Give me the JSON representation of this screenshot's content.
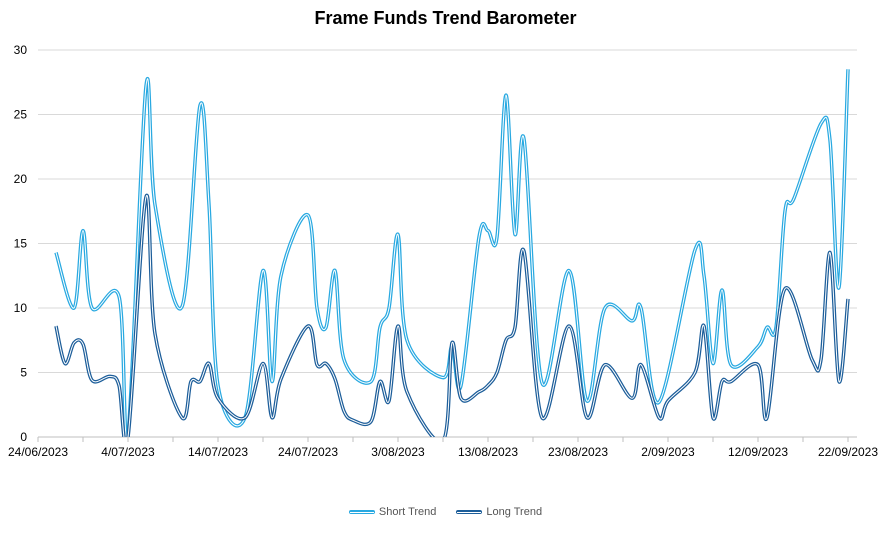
{
  "chart_data": {
    "type": "line",
    "title": "Frame Funds Trend Barometer",
    "xlabel": "",
    "ylabel": "",
    "xlim": [
      "24/06/2023",
      "23/09/2023"
    ],
    "ylim": [
      0,
      30
    ],
    "y_ticks": [
      0,
      5,
      10,
      15,
      20,
      25,
      30
    ],
    "x_ticks": [
      "24/06/2023",
      "4/07/2023",
      "14/07/2023",
      "24/07/2023",
      "3/08/2023",
      "13/08/2023",
      "23/08/2023",
      "2/09/2023",
      "12/09/2023",
      "22/09/2023"
    ],
    "grid": "horizontal",
    "legend": "bottom",
    "series": [
      {
        "name": "Short Trend",
        "color": "#29A9E1",
        "points": [
          [
            "26/06/2023",
            14.3
          ],
          [
            "28/06/2023",
            10.0
          ],
          [
            "29/06/2023",
            16.0
          ],
          [
            "30/06/2023",
            10.0
          ],
          [
            "3/07/2023",
            10.9
          ],
          [
            "4/07/2023",
            0.2
          ],
          [
            "6/07/2023",
            27.2
          ],
          [
            "7/07/2023",
            18.0
          ],
          [
            "10/07/2023",
            10.1
          ],
          [
            "12/07/2023",
            25.7
          ],
          [
            "13/07/2023",
            18.0
          ],
          [
            "14/07/2023",
            4.0
          ],
          [
            "17/07/2023",
            1.5
          ],
          [
            "19/07/2023",
            12.9
          ],
          [
            "20/07/2023",
            4.3
          ],
          [
            "21/07/2023",
            12.5
          ],
          [
            "24/07/2023",
            17.2
          ],
          [
            "25/07/2023",
            10.0
          ],
          [
            "26/07/2023",
            8.5
          ],
          [
            "27/07/2023",
            12.9
          ],
          [
            "28/07/2023",
            6.0
          ],
          [
            "31/07/2023",
            4.3
          ],
          [
            "1/08/2023",
            8.5
          ],
          [
            "2/08/2023",
            10.0
          ],
          [
            "3/08/2023",
            15.7
          ],
          [
            "4/08/2023",
            7.5
          ],
          [
            "8/08/2023",
            4.6
          ],
          [
            "9/08/2023",
            7.0
          ],
          [
            "10/08/2023",
            4.0
          ],
          [
            "12/08/2023",
            15.5
          ],
          [
            "13/08/2023",
            16.0
          ],
          [
            "14/08/2023",
            15.5
          ],
          [
            "15/08/2023",
            26.5
          ],
          [
            "16/08/2023",
            15.7
          ],
          [
            "17/08/2023",
            23.1
          ],
          [
            "19/08/2023",
            4.2
          ],
          [
            "22/08/2023",
            12.9
          ],
          [
            "24/08/2023",
            2.8
          ],
          [
            "26/08/2023",
            10.0
          ],
          [
            "29/08/2023",
            9.0
          ],
          [
            "30/08/2023",
            10.0
          ],
          [
            "1/09/2023",
            2.7
          ],
          [
            "5/09/2023",
            14.5
          ],
          [
            "6/09/2023",
            12.5
          ],
          [
            "7/09/2023",
            5.7
          ],
          [
            "8/09/2023",
            11.4
          ],
          [
            "9/09/2023",
            5.6
          ],
          [
            "12/09/2023",
            7.0
          ],
          [
            "13/09/2023",
            8.5
          ],
          [
            "14/09/2023",
            8.5
          ],
          [
            "15/09/2023",
            17.5
          ],
          [
            "16/09/2023",
            18.5
          ],
          [
            "19/09/2023",
            24.3
          ],
          [
            "20/09/2023",
            23.0
          ],
          [
            "21/09/2023",
            11.6
          ],
          [
            "22/09/2023",
            28.5
          ]
        ]
      },
      {
        "name": "Long Trend",
        "color": "#1D5E9A",
        "points": [
          [
            "26/06/2023",
            8.6
          ],
          [
            "27/06/2023",
            5.7
          ],
          [
            "28/06/2023",
            7.3
          ],
          [
            "29/06/2023",
            7.2
          ],
          [
            "30/06/2023",
            4.4
          ],
          [
            "2/07/2023",
            4.7
          ],
          [
            "3/07/2023",
            4.0
          ],
          [
            "4/07/2023",
            0.0
          ],
          [
            "6/07/2023",
            18.6
          ],
          [
            "7/07/2023",
            8.0
          ],
          [
            "10/07/2023",
            1.5
          ],
          [
            "11/07/2023",
            4.3
          ],
          [
            "12/07/2023",
            4.3
          ],
          [
            "13/07/2023",
            5.7
          ],
          [
            "14/07/2023",
            3.0
          ],
          [
            "17/07/2023",
            1.5
          ],
          [
            "19/07/2023",
            5.7
          ],
          [
            "20/07/2023",
            1.5
          ],
          [
            "21/07/2023",
            4.5
          ],
          [
            "24/07/2023",
            8.6
          ],
          [
            "25/07/2023",
            5.6
          ],
          [
            "26/07/2023",
            5.7
          ],
          [
            "27/07/2023",
            4.5
          ],
          [
            "28/07/2023",
            2.0
          ],
          [
            "29/07/2023",
            1.3
          ],
          [
            "31/07/2023",
            1.2
          ],
          [
            "1/08/2023",
            4.3
          ],
          [
            "2/08/2023",
            2.8
          ],
          [
            "3/08/2023",
            8.6
          ],
          [
            "4/08/2023",
            3.5
          ],
          [
            "8/08/2023",
            -0.3
          ],
          [
            "9/08/2023",
            7.3
          ],
          [
            "10/08/2023",
            3.0
          ],
          [
            "12/08/2023",
            3.5
          ],
          [
            "13/08/2023",
            4.0
          ],
          [
            "14/08/2023",
            5.0
          ],
          [
            "15/08/2023",
            7.5
          ],
          [
            "16/08/2023",
            8.5
          ],
          [
            "17/08/2023",
            14.4
          ],
          [
            "19/08/2023",
            1.5
          ],
          [
            "22/08/2023",
            8.6
          ],
          [
            "24/08/2023",
            1.5
          ],
          [
            "26/08/2023",
            5.6
          ],
          [
            "29/08/2023",
            3.0
          ],
          [
            "30/08/2023",
            5.6
          ],
          [
            "1/09/2023",
            1.5
          ],
          [
            "2/09/2023",
            2.8
          ],
          [
            "5/09/2023",
            5.0
          ],
          [
            "6/09/2023",
            8.6
          ],
          [
            "7/09/2023",
            1.5
          ],
          [
            "8/09/2023",
            4.3
          ],
          [
            "9/09/2023",
            4.3
          ],
          [
            "12/09/2023",
            5.6
          ],
          [
            "13/09/2023",
            1.5
          ],
          [
            "15/09/2023",
            11.5
          ],
          [
            "18/09/2023",
            6.0
          ],
          [
            "19/09/2023",
            6.0
          ],
          [
            "20/09/2023",
            14.3
          ],
          [
            "21/09/2023",
            4.3
          ],
          [
            "22/09/2023",
            10.7
          ]
        ]
      }
    ]
  }
}
